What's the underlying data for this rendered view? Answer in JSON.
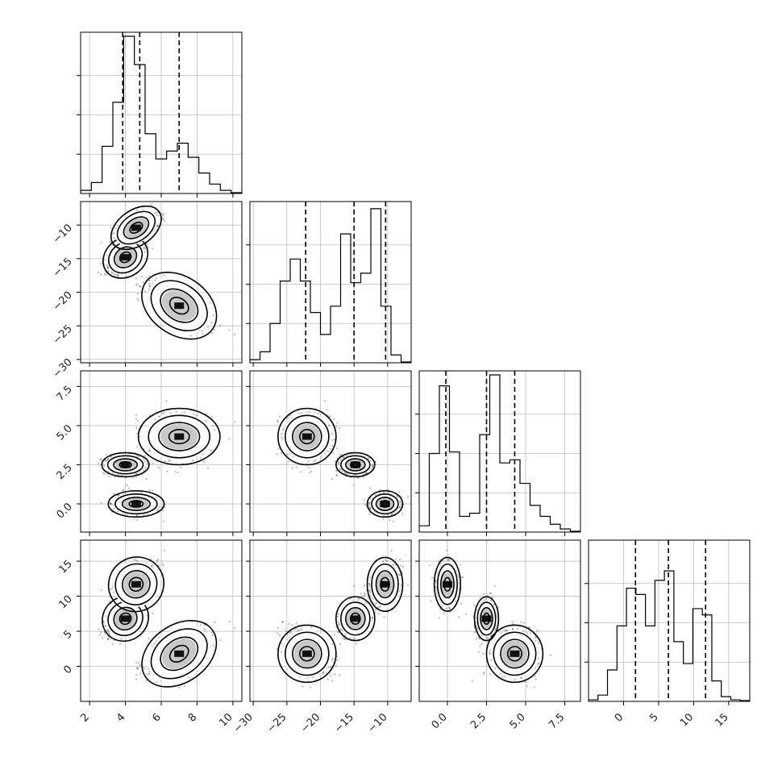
{
  "chart_data": {
    "type": "corner",
    "parameters": [
      {
        "range": [
          1.5,
          10.5
        ],
        "ticks": [
          2,
          4,
          6,
          8,
          10
        ],
        "tick_labels": [
          "2",
          "4",
          "6",
          "8",
          "10"
        ],
        "quantiles": [
          3.85,
          4.8,
          7.0
        ]
      },
      {
        "range": [
          -30.5,
          -6.5
        ],
        "ticks": [
          -30,
          -25,
          -20,
          -15,
          -10
        ],
        "tick_labels": [
          "−30",
          "−25",
          "−20",
          "−15",
          "−10"
        ],
        "quantiles": [
          -22.2,
          -15.0,
          -10.3
        ]
      },
      {
        "range": [
          -1.8,
          8.5
        ],
        "ticks": [
          0,
          2.5,
          5,
          7.5
        ],
        "tick_labels": [
          "0.0",
          "2.5",
          "5.0",
          "7.5"
        ],
        "quantiles": [
          -0.1,
          2.5,
          4.3
        ]
      },
      {
        "range": [
          -5,
          18
        ],
        "ticks": [
          0,
          5,
          10,
          15
        ],
        "tick_labels": [
          "0",
          "5",
          "10",
          "15"
        ],
        "quantiles": [
          1.7,
          6.4,
          11.7
        ]
      }
    ],
    "histograms": [
      {
        "edges_from": 1.5,
        "edges_to": 10.5,
        "counts": [
          0.02,
          0.07,
          0.3,
          0.58,
          1.0,
          0.82,
          0.38,
          0.22,
          0.27,
          0.32,
          0.23,
          0.13,
          0.06,
          0.02,
          0.005
        ]
      },
      {
        "edges_from": -30.5,
        "edges_to": -6.5,
        "counts": [
          0.02,
          0.07,
          0.25,
          0.52,
          0.66,
          0.52,
          0.32,
          0.18,
          0.36,
          0.82,
          0.51,
          0.57,
          0.98,
          0.36,
          0.05,
          0.005
        ]
      },
      {
        "edges_from": -1.8,
        "edges_to": 8.5,
        "counts": [
          0.04,
          0.5,
          0.93,
          0.51,
          0.1,
          0.12,
          0.62,
          1.0,
          0.44,
          0.46,
          0.31,
          0.17,
          0.1,
          0.05,
          0.02,
          0.005
        ]
      },
      {
        "edges_from": -5,
        "edges_to": 18,
        "counts": [
          0.01,
          0.04,
          0.2,
          0.48,
          0.72,
          0.68,
          0.48,
          0.77,
          0.83,
          0.38,
          0.24,
          0.59,
          0.55,
          0.13,
          0.03,
          0.01,
          0.005
        ]
      }
    ],
    "clusters": [
      {
        "center": [
          4.0,
          -14.8,
          2.5,
          6.8
        ],
        "spread": [
          0.55,
          1.2,
          0.32,
          1.3
        ]
      },
      {
        "center": [
          4.6,
          -10.4,
          0.0,
          11.7
        ],
        "spread": [
          0.65,
          1.1,
          0.35,
          1.6
        ]
      },
      {
        "center": [
          7.0,
          -22.0,
          4.3,
          1.8
        ],
        "spread": [
          0.95,
          1.8,
          0.75,
          1.7
        ]
      }
    ],
    "grid": true
  }
}
